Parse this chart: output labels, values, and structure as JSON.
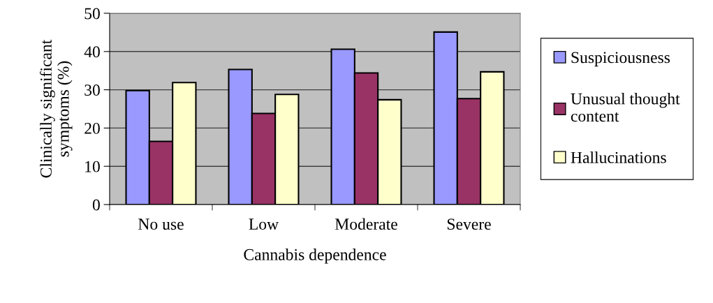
{
  "chart_data": {
    "type": "bar",
    "xlabel": "Cannabis dependence",
    "ylabel": "Clinically significant\nsymptoms (%)",
    "categories": [
      "No use",
      "Low",
      "Moderate",
      "Severe"
    ],
    "series": [
      {
        "name": "Suspiciousness",
        "color": "#9999ff",
        "values": [
          29.8,
          35.3,
          40.6,
          45.1
        ]
      },
      {
        "name": "Unusual thought\ncontent",
        "color": "#993366",
        "values": [
          16.5,
          23.8,
          34.4,
          27.7
        ]
      },
      {
        "name": "Hallucinations",
        "color": "#ffffcc",
        "values": [
          31.9,
          28.8,
          27.4,
          34.7
        ]
      }
    ],
    "ylim": [
      0,
      50
    ],
    "yticks": [
      0,
      10,
      20,
      30,
      40,
      50
    ],
    "grid": "y",
    "legend": "right"
  }
}
